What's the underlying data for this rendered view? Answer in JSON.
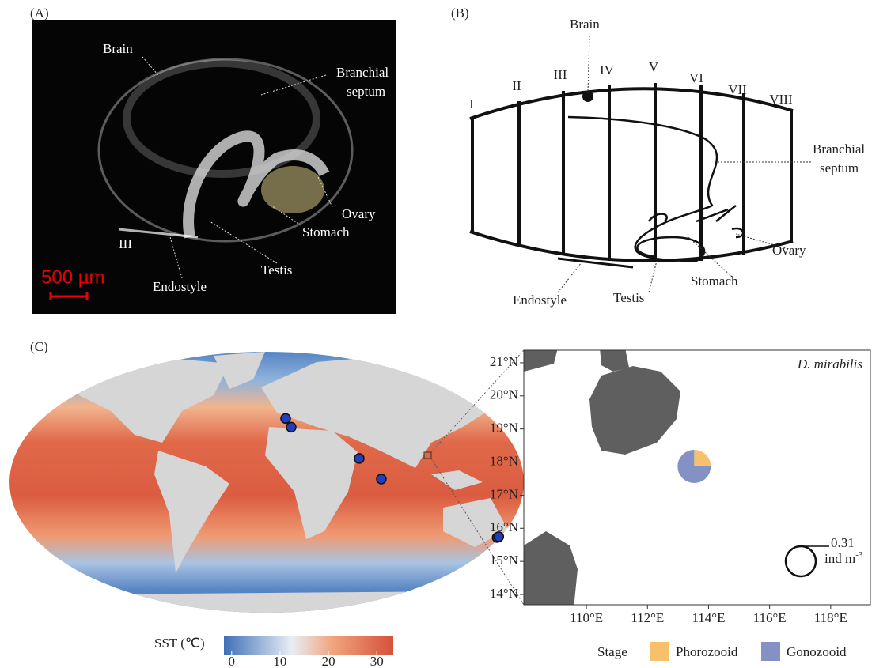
{
  "panel_a": {
    "label": "(A)",
    "brain": "Brain",
    "branchial_septum": [
      "Branchial",
      "septum"
    ],
    "ovary": "Ovary",
    "stomach": "Stomach",
    "zooid": "III",
    "testis": "Testis",
    "endostyle": "Endostyle",
    "scale_bar": "500 µm"
  },
  "panel_b": {
    "label": "(B)",
    "brain": "Brain",
    "segments": [
      "I",
      "II",
      "III",
      "IV",
      "V",
      "VI",
      "VII",
      "VIII"
    ],
    "branchial_septum": [
      "Branchial",
      "septum"
    ],
    "ovary": "Ovary",
    "stomach": "Stomach",
    "testis": "Testis",
    "endostyle": "Endostyle"
  },
  "panel_c": {
    "label": "(C)",
    "colorbar": {
      "title": "SST (℃)",
      "lim": [
        -1.6,
        33.4
      ],
      "ticks": [
        0,
        10,
        20,
        30
      ]
    },
    "sites": [
      {
        "lon": 13.4,
        "lat": 44
      },
      {
        "lon": 17.3,
        "lat": 38
      },
      {
        "lon": 65.3,
        "lat": 16.4
      },
      {
        "lon": 80.9,
        "lat": 2.2
      },
      {
        "lon": 162.6,
        "lat": -38.2
      },
      {
        "lon": 163.7,
        "lat": -37.6
      }
    ],
    "site_color": "#1f3fbf"
  },
  "inset": {
    "title": "D. mirabilis",
    "xlim": [
      107.95,
      119.3
    ],
    "ylim": [
      13.69,
      21.38
    ],
    "xticks": [
      {
        "value": 110,
        "label": "110°E"
      },
      {
        "value": 112,
        "label": "112°E"
      },
      {
        "value": 114,
        "label": "114°E"
      },
      {
        "value": 116,
        "label": "116°E"
      },
      {
        "value": 118,
        "label": "118°E"
      }
    ],
    "yticks": [
      {
        "value": 14,
        "label": "14°N"
      },
      {
        "value": 15,
        "label": "15°N"
      },
      {
        "value": 16,
        "label": "16°N"
      },
      {
        "value": 17,
        "label": "17°N"
      },
      {
        "value": 18,
        "label": "18°N"
      },
      {
        "value": 19,
        "label": "19°N"
      },
      {
        "value": 20,
        "label": "20°N"
      },
      {
        "value": 21,
        "label": "21°N"
      }
    ],
    "pie": {
      "lon": 113.53,
      "lat": 17.87,
      "values": [
        25,
        75
      ]
    },
    "size_legend": {
      "value": "0.31",
      "unit": "ind m",
      "unit_exp": "-3"
    },
    "legend": {
      "title": "Stage",
      "items": [
        {
          "name": "Phorozooid",
          "color": "#f7c06a"
        },
        {
          "name": "Gonozooid",
          "color": "#8391c4"
        }
      ]
    }
  }
}
